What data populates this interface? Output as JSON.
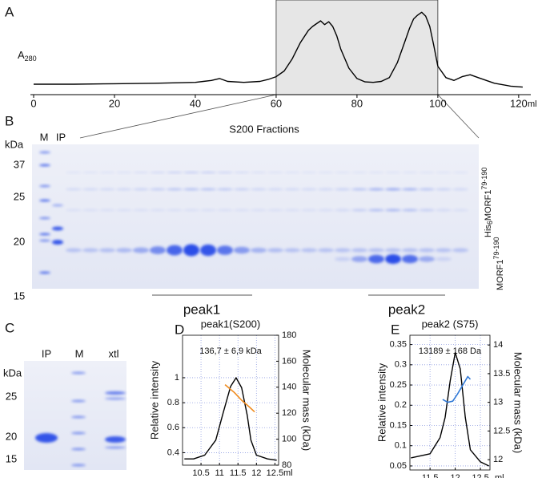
{
  "panel_labels": [
    "A",
    "B",
    "C",
    "D",
    "E"
  ],
  "chart_data": [
    {
      "type": "line",
      "y_label": "A",
      "y_label_sub": "280",
      "x_label": "ml",
      "color": "#000000",
      "x": [
        0,
        10,
        20,
        30,
        40,
        44,
        46,
        48,
        52,
        56,
        58,
        60,
        62,
        64,
        66,
        68,
        69,
        70,
        71,
        72,
        73,
        74,
        75,
        76,
        78,
        80,
        82,
        84,
        86,
        88,
        90,
        92,
        93,
        94,
        95,
        96,
        97,
        98,
        99,
        100,
        102,
        104,
        106,
        108,
        110,
        114,
        118,
        121
      ],
      "values": [
        11,
        11,
        11.5,
        12,
        13,
        15,
        17,
        14,
        13,
        14,
        16,
        19,
        25,
        38,
        55,
        68,
        72,
        75,
        78,
        74,
        77,
        72,
        62,
        48,
        28,
        17,
        13.5,
        13,
        14,
        18,
        34,
        58,
        70,
        80,
        84,
        87,
        83,
        72,
        52,
        30,
        18,
        15,
        19,
        21,
        18,
        12,
        9,
        8
      ],
      "xlim": [
        0,
        123
      ],
      "xticks": [
        0,
        20,
        40,
        60,
        80,
        100,
        120
      ],
      "ylim": [
        0,
        100
      ],
      "shade": [
        60,
        100
      ],
      "shade_color": "#e6e6e6"
    },
    {
      "type": "line",
      "title": "peak1(S200)",
      "annotation": "136,7 ± 6,9 kDa",
      "y_label": "Relative intensity",
      "y2_label": "Molecular mass (kDa)",
      "x_label": "ml",
      "xlim": [
        10,
        12.6
      ],
      "xticks": [
        10.5,
        11,
        11.5,
        12,
        12.5
      ],
      "ylim": [
        0.3,
        1.34
      ],
      "yticks": [
        0.4,
        0.6,
        0.8,
        1
      ],
      "y2lim": [
        80,
        180
      ],
      "y2ticks": [
        80,
        100,
        120,
        140,
        160,
        180
      ],
      "grid": true,
      "series": [
        {
          "color": "#000000",
          "x": [
            10.05,
            10.3,
            10.6,
            10.9,
            11.1,
            11.3,
            11.45,
            11.6,
            11.75,
            11.85,
            12,
            12.3,
            12.55
          ],
          "values": [
            0.35,
            0.35,
            0.38,
            0.5,
            0.72,
            0.93,
            1.0,
            0.92,
            0.7,
            0.5,
            0.38,
            0.35,
            0.34
          ]
        },
        {
          "color": "#f08a1c",
          "axis": "y2",
          "x": [
            11.15,
            11.4,
            11.6,
            11.8,
            11.95
          ],
          "values": [
            142,
            136,
            130,
            125,
            121
          ]
        }
      ]
    },
    {
      "type": "line",
      "title": "peak2 (S75)",
      "annotation": "13189 ± 168 Da",
      "y_label": "Relative intensity",
      "y2_label": "Molecular mass (kDa)",
      "x_label": "ml",
      "xlim": [
        11.1,
        12.69
      ],
      "xticks": [
        11.5,
        12,
        12.5
      ],
      "ylim": [
        0.04,
        0.373
      ],
      "yticks": [
        0.05,
        0.1,
        0.15,
        0.2,
        0.25,
        0.3,
        0.35
      ],
      "y2lim": [
        11.82,
        14.17
      ],
      "y2ticks": [
        12,
        12.5,
        13,
        13.5,
        14
      ],
      "grid": true,
      "series": [
        {
          "color": "#000000",
          "x": [
            11.12,
            11.5,
            11.7,
            11.8,
            11.9,
            12,
            12.1,
            12.2,
            12.3,
            12.5,
            12.67
          ],
          "values": [
            0.07,
            0.08,
            0.12,
            0.17,
            0.26,
            0.33,
            0.29,
            0.17,
            0.09,
            0.06,
            0.05
          ]
        },
        {
          "color": "#2f78d6",
          "axis": "y2",
          "x": [
            11.75,
            11.85,
            11.95,
            12.05,
            12.15,
            12.25,
            12.3
          ],
          "values": [
            13.05,
            13.0,
            13.02,
            13.15,
            13.3,
            13.45,
            13.4
          ]
        }
      ]
    }
  ],
  "gel_b": {
    "title": "S200 Fractions",
    "lanes": [
      "M",
      "IP"
    ],
    "unit": "kDa",
    "markers": [
      37,
      25,
      20,
      15
    ],
    "tagged": {
      "main": "His",
      "sub": "6",
      "name": "MORF1",
      "sup": "79-190"
    },
    "untagged": {
      "name": "MORF1",
      "sup": "79-190"
    },
    "peaks": [
      "peak1",
      "peak2"
    ]
  },
  "gel_c": {
    "lanes": [
      "IP",
      "M",
      "xtl"
    ],
    "unit": "kDa",
    "markers": [
      25,
      20,
      15
    ]
  }
}
